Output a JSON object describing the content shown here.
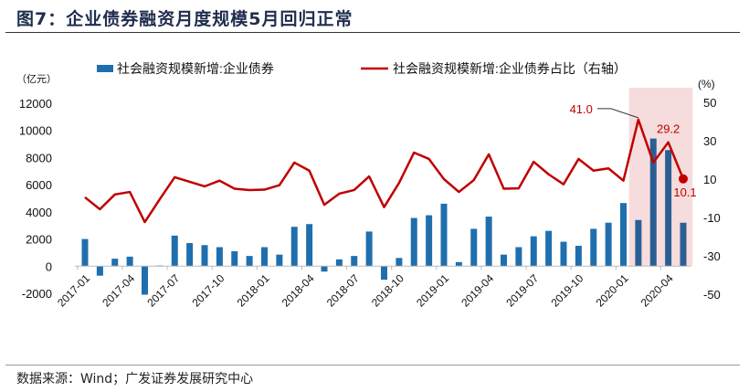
{
  "title": "图7：企业债券融资月度规模5月回归正常",
  "source": "数据来源：Wind；广发证券发展研究中心",
  "chart_data": {
    "type": "bar+line",
    "left_unit": "（亿元）",
    "right_unit": "(%)",
    "ylim_left": [
      -2000,
      12000
    ],
    "yticks_left": [
      -2000,
      0,
      2000,
      4000,
      6000,
      8000,
      10000,
      12000
    ],
    "ylim_right": [
      -50,
      50
    ],
    "yticks_right": [
      -50,
      -30,
      -10,
      10,
      30,
      50
    ],
    "legend_placement": "top",
    "colors": {
      "bar": "#1f6fae",
      "line": "#c00000",
      "highlight": "#f6dcdc"
    },
    "highlight_range": [
      "2020-02",
      "2020-05"
    ],
    "xtick_labels": [
      "2017-01",
      "2017-04",
      "2017-07",
      "2017-10",
      "2018-01",
      "2018-04",
      "2018-07",
      "2018-10",
      "2019-01",
      "2019-04",
      "2019-07",
      "2019-10",
      "2020-01",
      "2020-04"
    ],
    "categories": [
      "2017-01",
      "2017-02",
      "2017-03",
      "2017-04",
      "2017-05",
      "2017-06",
      "2017-07",
      "2017-08",
      "2017-09",
      "2017-10",
      "2017-11",
      "2017-12",
      "2018-01",
      "2018-02",
      "2018-03",
      "2018-04",
      "2018-05",
      "2018-06",
      "2018-07",
      "2018-08",
      "2018-09",
      "2018-10",
      "2018-11",
      "2018-12",
      "2019-01",
      "2019-02",
      "2019-03",
      "2019-04",
      "2019-05",
      "2019-06",
      "2019-07",
      "2019-08",
      "2019-09",
      "2019-10",
      "2019-11",
      "2019-12",
      "2020-01",
      "2020-02",
      "2020-03",
      "2020-04",
      "2020-05"
    ],
    "series": [
      {
        "name": "社会融资规模新增:企业债券",
        "type": "bar",
        "axis": "left",
        "values": [
          2000,
          -700,
          550,
          700,
          -2100,
          50,
          2250,
          1700,
          1550,
          1400,
          1100,
          750,
          1400,
          850,
          2900,
          3100,
          -400,
          500,
          750,
          2550,
          -1000,
          600,
          3550,
          3750,
          4600,
          300,
          2750,
          3650,
          850,
          1400,
          2200,
          2600,
          1800,
          1500,
          2750,
          3200,
          4650,
          3400,
          9400,
          8550,
          3200
        ]
      },
      {
        "name": "社会融资规模新增:企业债券占比（右轴）",
        "type": "line",
        "axis": "right",
        "values": [
          0.5,
          -5.7,
          2,
          3.3,
          -12.4,
          -0.5,
          11,
          8.6,
          6.2,
          9.2,
          5,
          4.3,
          4.5,
          6.8,
          18.6,
          14.4,
          -3.4,
          2.4,
          4.3,
          11.4,
          -4.6,
          8,
          23.8,
          20.5,
          10,
          3.3,
          9.5,
          22.9,
          5,
          5.2,
          19,
          12.5,
          7.3,
          20.5,
          14.4,
          15.6,
          9.2,
          41.0,
          18.6,
          29.2,
          10.1
        ]
      }
    ],
    "annotations": [
      {
        "x": "2020-02",
        "label": "41.0"
      },
      {
        "x": "2020-04",
        "label": "29.2"
      },
      {
        "x": "2020-05",
        "label": "10.1"
      }
    ]
  }
}
